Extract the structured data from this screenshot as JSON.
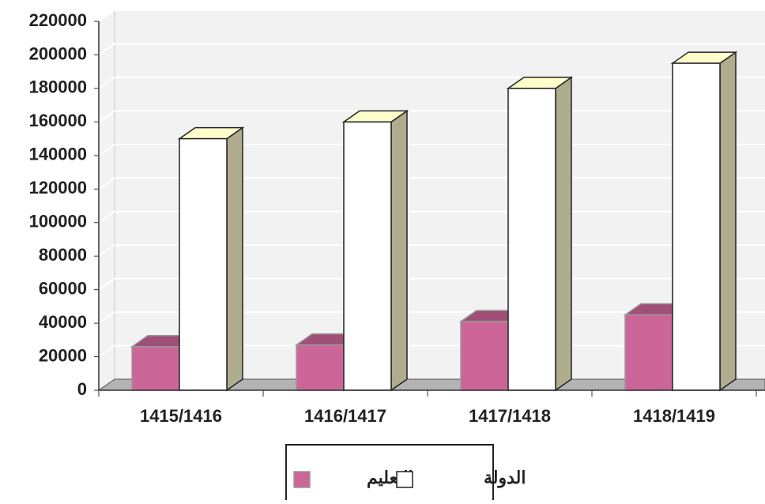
{
  "chart_data": {
    "type": "bar3d",
    "categories": [
      "1415/1416",
      "1416/1417",
      "1417/1418",
      "1418/1419"
    ],
    "series": [
      {
        "name": "التعليم",
        "color": "#cc6699",
        "values": [
          26000,
          27000,
          41000,
          45000
        ]
      },
      {
        "name": "الدولة",
        "color": "#ffffff",
        "values": [
          150000,
          160000,
          180000,
          195000
        ]
      }
    ],
    "ylim": [
      0,
      220000
    ],
    "yticks": [
      0,
      20000,
      40000,
      60000,
      80000,
      100000,
      120000,
      140000,
      160000,
      180000,
      200000,
      220000
    ],
    "grid": true,
    "legend": "bottom"
  }
}
